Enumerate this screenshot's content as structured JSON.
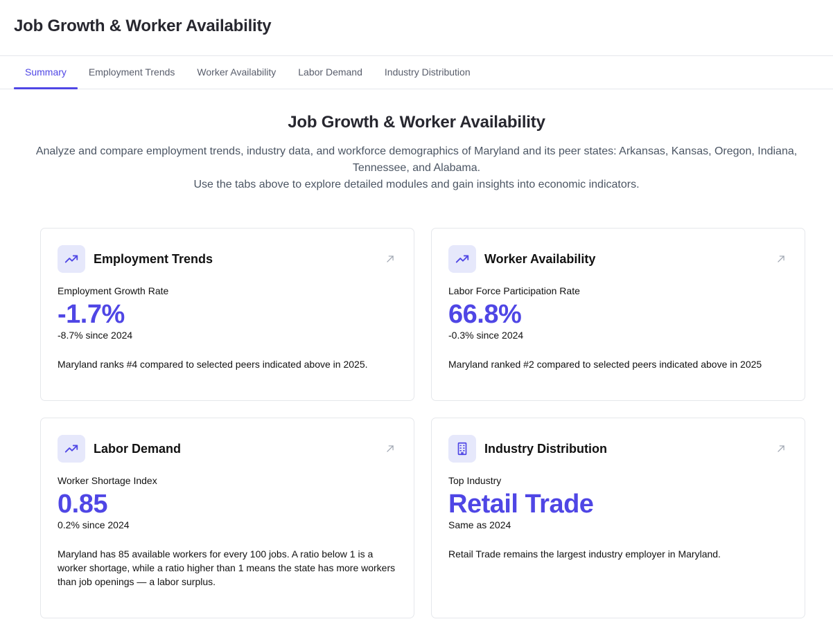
{
  "header": {
    "title": "Job Growth & Worker Availability"
  },
  "tabs": [
    {
      "label": "Summary"
    },
    {
      "label": "Employment Trends"
    },
    {
      "label": "Worker Availability"
    },
    {
      "label": "Labor Demand"
    },
    {
      "label": "Industry Distribution"
    }
  ],
  "hero": {
    "title": "Job Growth & Worker Availability",
    "line1": "Analyze and compare employment trends, industry data, and workforce demographics of Maryland and its peer states: Arkansas, Kansas, Oregon, Indiana, Tennessee, and Alabama.",
    "line2": "Use the tabs above to explore detailed modules and gain insights into economic indicators."
  },
  "cards": [
    {
      "icon": "trending-up-icon",
      "title": "Employment Trends",
      "metric_label": "Employment Growth Rate",
      "metric_value": "-1.7%",
      "metric_change": "-8.7% since 2024",
      "description": "Maryland ranks #4 compared to selected peers indicated above in 2025."
    },
    {
      "icon": "trending-up-icon",
      "title": "Worker Availability",
      "metric_label": "Labor Force Participation Rate",
      "metric_value": "66.8%",
      "metric_change": "-0.3% since 2024",
      "description": "Maryland ranked #2 compared to selected peers indicated above in 2025"
    },
    {
      "icon": "trending-up-icon",
      "title": "Labor Demand",
      "metric_label": "Worker Shortage Index",
      "metric_value": "0.85",
      "metric_change": "0.2% since 2024",
      "description": "Maryland has 85 available workers for every 100 jobs. A ratio below 1 is a worker shortage, while a ratio higher than 1 means the state has more workers than job openings — a labor surplus."
    },
    {
      "icon": "building-icon",
      "title": "Industry Distribution",
      "metric_label": "Top Industry",
      "metric_value": "Retail Trade",
      "metric_change": "Same as 2024",
      "description": "Retail Trade remains the largest industry employer in Maryland."
    }
  ],
  "colors": {
    "accent": "#4f46e5",
    "icon_bg": "#e6e8fb",
    "border": "#e5e7eb"
  }
}
